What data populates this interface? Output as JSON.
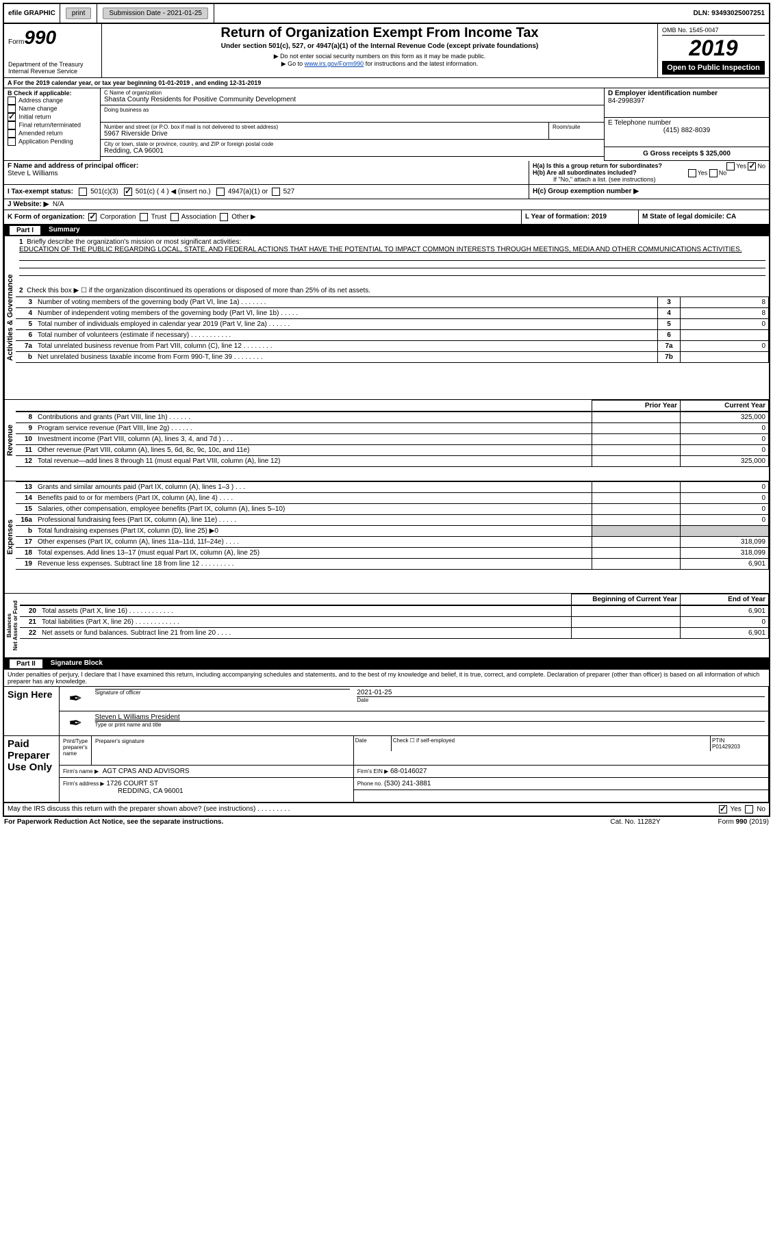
{
  "topbar": {
    "efile": "efile GRAPHIC",
    "print": "print",
    "submission_label": "Submission Date - 2021-01-25",
    "dln_label": "DLN: 93493025007251"
  },
  "header": {
    "form_label": "Form",
    "form_number": "990",
    "dept": "Department of the Treasury",
    "irs": "Internal Revenue Service",
    "title": "Return of Organization Exempt From Income Tax",
    "subtitle": "Under section 501(c), 527, or 4947(a)(1) of the Internal Revenue Code (except private foundations)",
    "note1": "▶ Do not enter social security numbers on this form as it may be made public.",
    "note2_prefix": "▶ Go to ",
    "note2_link": "www.irs.gov/Form990",
    "note2_suffix": " for instructions and the latest information.",
    "omb": "OMB No. 1545-0047",
    "year": "2019",
    "open_public": "Open to Public Inspection"
  },
  "period": {
    "line_a": "A For the 2019 calendar year, or tax year beginning 01-01-2019     , and ending 12-31-2019"
  },
  "section_b": {
    "label": "B Check if applicable:",
    "items": [
      "Address change",
      "Name change",
      "Initial return",
      "Final return/terminated",
      "Amended return",
      "Application Pending"
    ],
    "checked_index": 2
  },
  "section_c": {
    "name_label": "C Name of organization",
    "name": "Shasta County Residents for Positive Community Development",
    "dba_label": "Doing business as",
    "addr_label": "Number and street (or P.O. box if mail is not delivered to street address)",
    "room_label": "Room/suite",
    "addr": "5967 Riverside Drive",
    "city_label": "City or town, state or province, country, and ZIP or foreign postal code",
    "city": "Redding, CA  96001"
  },
  "section_d": {
    "label": "D Employer identification number",
    "value": "84-2998397"
  },
  "section_e": {
    "label": "E Telephone number",
    "value": "(415) 882-8039"
  },
  "section_g": {
    "label": "G Gross receipts $ 325,000"
  },
  "section_f": {
    "label": "F  Name and address of principal officer:",
    "name": "Steve L Williams"
  },
  "section_h": {
    "ha": "H(a)  Is this a group return for subordinates?",
    "hb": "H(b)  Are all subordinates included?",
    "hb_note": "If \"No,\" attach a list. (see instructions)",
    "hc": "H(c)  Group exemption number ▶",
    "yes": "Yes",
    "no": "No"
  },
  "section_i": {
    "label": "I  Tax-exempt status:",
    "opts": [
      "501(c)(3)",
      "501(c) ( 4 ) ◀ (insert no.)",
      "4947(a)(1) or",
      "527"
    ],
    "checked": 1
  },
  "section_j": {
    "label": "J  Website: ▶",
    "value": "N/A"
  },
  "section_k": {
    "label": "K Form of organization:",
    "opts": [
      "Corporation",
      "Trust",
      "Association",
      "Other ▶"
    ],
    "checked": 0
  },
  "section_l": {
    "label": "L Year of formation: 2019"
  },
  "section_m": {
    "label": "M State of legal domicile: CA"
  },
  "part1": {
    "title": "Part I",
    "label": "Summary",
    "q1_label": "1",
    "q1_text": "Briefly describe the organization's mission or most significant activities:",
    "q1_answer": "EDUCATION OF THE PUBLIC REGARDING LOCAL, STATE, AND FEDERAL ACTIONS THAT HAVE THE POTENTIAL TO IMPACT COMMON INTERESTS THROUGH MEETINGS, MEDIA AND OTHER COMMUNICATIONS ACTIVITIES.",
    "q2": "Check this box ▶ ☐  if the organization discontinued its operations or disposed of more than 25% of its net assets.",
    "sections": {
      "governance": "Activities & Governance",
      "revenue": "Revenue",
      "expenses": "Expenses",
      "netassets": "Net Assets or Fund Balances"
    },
    "gov_rows": [
      {
        "n": "3",
        "d": "Number of voting members of the governing body (Part VI, line 1a)  .    .    .    .    .    .    .",
        "box": "3",
        "v": "8"
      },
      {
        "n": "4",
        "d": "Number of independent voting members of the governing body (Part VI, line 1b)  .    .    .    .    .",
        "box": "4",
        "v": "8"
      },
      {
        "n": "5",
        "d": "Total number of individuals employed in calendar year 2019 (Part V, line 2a)  .    .    .    .    .    .",
        "box": "5",
        "v": "0"
      },
      {
        "n": "6",
        "d": "Total number of volunteers (estimate if necessary)    .    .    .    .    .    .    .    .    .    .    .",
        "box": "6",
        "v": ""
      },
      {
        "n": "7a",
        "d": "Total unrelated business revenue from Part VIII, column (C), line 12  .    .    .    .    .    .    .    .",
        "box": "7a",
        "v": "0"
      },
      {
        "n": "b",
        "d": "Net unrelated business taxable income from Form 990-T, line 39    .    .    .    .    .    .    .    .",
        "box": "7b",
        "v": ""
      }
    ],
    "col_headers": {
      "prior": "Prior Year",
      "current": "Current Year"
    },
    "rev_rows": [
      {
        "n": "8",
        "d": "Contributions and grants (Part VIII, line 1h)   .    .    .    .    .    .",
        "p": "",
        "c": "325,000"
      },
      {
        "n": "9",
        "d": "Program service revenue (Part VIII, line 2g)   .    .    .    .    .    .",
        "p": "",
        "c": "0"
      },
      {
        "n": "10",
        "d": "Investment income (Part VIII, column (A), lines 3, 4, and 7d )   .    .    .",
        "p": "",
        "c": "0"
      },
      {
        "n": "11",
        "d": "Other revenue (Part VIII, column (A), lines 5, 6d, 8c, 9c, 10c, and 11e)",
        "p": "",
        "c": "0"
      },
      {
        "n": "12",
        "d": "Total revenue—add lines 8 through 11 (must equal Part VIII, column (A), line 12)",
        "p": "",
        "c": "325,000"
      }
    ],
    "exp_rows": [
      {
        "n": "13",
        "d": "Grants and similar amounts paid (Part IX, column (A), lines 1–3 )   .    .    .",
        "p": "",
        "c": "0"
      },
      {
        "n": "14",
        "d": "Benefits paid to or for members (Part IX, column (A), line 4)   .    .    .    .",
        "p": "",
        "c": "0"
      },
      {
        "n": "15",
        "d": "Salaries, other compensation, employee benefits (Part IX, column (A), lines 5–10)",
        "p": "",
        "c": "0"
      },
      {
        "n": "16a",
        "d": "Professional fundraising fees (Part IX, column (A), line 11e)  .    .    .    .    .",
        "p": "",
        "c": "0"
      },
      {
        "n": "b",
        "d": "Total fundraising expenses (Part IX, column (D), line 25) ▶0",
        "p": "shaded",
        "c": "shaded"
      },
      {
        "n": "17",
        "d": "Other expenses (Part IX, column (A), lines 11a–11d, 11f–24e)   .    .    .    .",
        "p": "",
        "c": "318,099"
      },
      {
        "n": "18",
        "d": "Total expenses. Add lines 13–17 (must equal Part IX, column (A), line 25)",
        "p": "",
        "c": "318,099"
      },
      {
        "n": "19",
        "d": "Revenue less expenses. Subtract line 18 from line 12 .    .    .    .    .    .    .    .    .",
        "p": "",
        "c": "6,901"
      }
    ],
    "net_headers": {
      "begin": "Beginning of Current Year",
      "end": "End of Year"
    },
    "net_rows": [
      {
        "n": "20",
        "d": "Total assets (Part X, line 16)  .    .    .    .    .    .    .    .    .    .    .    .",
        "p": "",
        "c": "6,901"
      },
      {
        "n": "21",
        "d": "Total liabilities (Part X, line 26) .    .    .    .    .    .    .    .    .    .    .    .",
        "p": "",
        "c": "0"
      },
      {
        "n": "22",
        "d": "Net assets or fund balances. Subtract line 21 from line 20   .    .    .    .",
        "p": "",
        "c": "6,901"
      }
    ]
  },
  "part2": {
    "title": "Part II",
    "label": "Signature Block",
    "penalty": "Under penalties of perjury, I declare that I have examined this return, including accompanying schedules and statements, and to the best of my knowledge and belief, it is true, correct, and complete. Declaration of preparer (other than officer) is based on all information of which preparer has any knowledge.",
    "sign_here": "Sign Here",
    "sig_officer": "Signature of officer",
    "date_label": "Date",
    "date_value": "2021-01-25",
    "officer_name": "Steven L Williams  President",
    "type_name": "Type or print name and title",
    "paid": "Paid Preparer Use Only",
    "prep_name_label": "Print/Type preparer's name",
    "prep_sig_label": "Preparer's signature",
    "check_self": "Check ☐ if self-employed",
    "ptin_label": "PTIN",
    "ptin": "P01429203",
    "firm_name_label": "Firm's name    ▶",
    "firm_name": "AGT CPAS AND ADVISORS",
    "firm_ein_label": "Firm's EIN ▶",
    "firm_ein": "68-0146027",
    "firm_addr_label": "Firm's address ▶",
    "firm_addr1": "1726 COURT ST",
    "firm_addr2": "REDDING, CA  96001",
    "phone_label": "Phone no.",
    "phone": "(530) 241-3881",
    "discuss": "May the IRS discuss this return with the preparer shown above? (see instructions)    .    .    .    .    .    .    .    .    .",
    "yes": "Yes",
    "no": "No"
  },
  "footer": {
    "paperwork": "For Paperwork Reduction Act Notice, see the separate instructions.",
    "cat": "Cat. No. 11282Y",
    "form": "Form 990 (2019)"
  }
}
